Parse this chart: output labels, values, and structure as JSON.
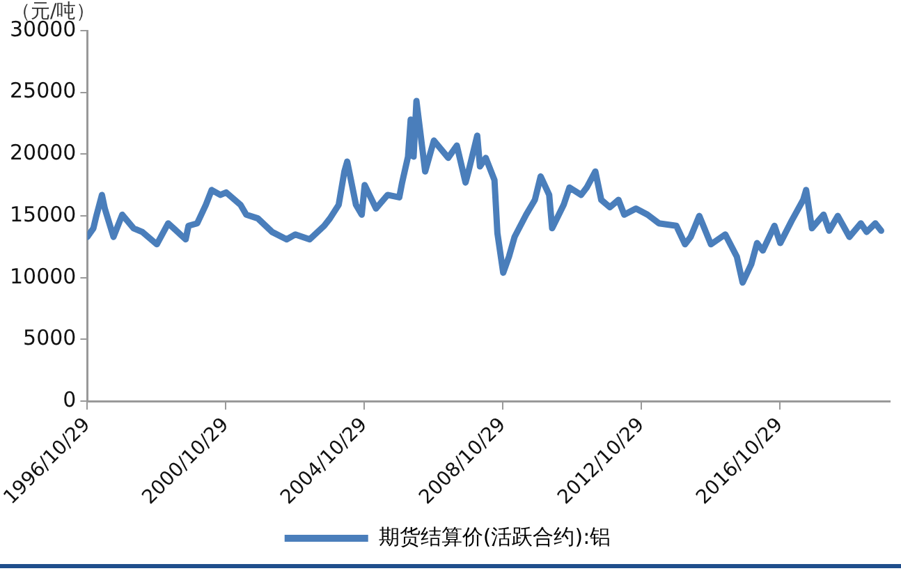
{
  "chart_data": {
    "type": "line",
    "ylabel": "（元/吨）",
    "x": [
      "1996-10-29",
      "1997-01",
      "1997-02",
      "1997-04",
      "1997-05",
      "1997-08",
      "1997-11",
      "1998-03",
      "1998-06",
      "1998-11",
      "1999-03",
      "1999-09",
      "1999-10",
      "2000-01",
      "2000-04",
      "2000-06",
      "2000-09",
      "2000-11",
      "2001-04",
      "2001-06",
      "2001-10",
      "2002-03",
      "2002-08",
      "2002-11",
      "2003-04",
      "2003-09",
      "2003-11",
      "2004-02",
      "2004-04",
      "2004-05",
      "2004-08",
      "2004-10",
      "2004-11",
      "2005-03",
      "2005-07",
      "2005-11",
      "2005-12",
      "2006-02",
      "2006-03",
      "2006-04",
      "2006-05",
      "2006-08",
      "2006-11",
      "2007-04",
      "2007-07",
      "2007-10",
      "2007-11",
      "2008-02",
      "2008-03",
      "2008-05",
      "2008-08",
      "2008-09",
      "2008-11",
      "2009-01",
      "2009-03",
      "2009-07",
      "2009-10",
      "2009-12",
      "2010-03",
      "2010-04",
      "2010-08",
      "2010-10",
      "2011-02",
      "2011-04",
      "2011-07",
      "2011-09",
      "2011-12",
      "2012-03",
      "2012-05",
      "2012-09",
      "2013-01",
      "2013-05",
      "2013-11",
      "2014-02",
      "2014-04",
      "2014-07",
      "2014-11",
      "2015-04",
      "2015-08",
      "2015-10",
      "2016-01",
      "2016-03",
      "2016-05",
      "2016-09",
      "2016-11",
      "2017-03",
      "2017-07",
      "2017-08",
      "2017-10",
      "2018-02",
      "2018-04",
      "2018-07",
      "2018-11",
      "2019-03",
      "2019-05",
      "2019-08",
      "2019-10"
    ],
    "series": [
      {
        "name": "期货结算价(活跃合约):铝",
        "color": "#4a7ebb",
        "values": [
          13300,
          14000,
          15000,
          16700,
          15600,
          13300,
          15100,
          14000,
          13700,
          12700,
          14400,
          13100,
          14200,
          14400,
          15900,
          17100,
          16700,
          16900,
          15900,
          15100,
          14800,
          13700,
          13100,
          13500,
          13100,
          14200,
          14800,
          15900,
          18600,
          19400,
          15900,
          15100,
          17500,
          15600,
          16700,
          16500,
          17700,
          19800,
          22800,
          19800,
          24300,
          18600,
          21100,
          19700,
          20700,
          17700,
          18600,
          21500,
          19000,
          19700,
          17900,
          13600,
          10400,
          11700,
          13300,
          15100,
          16300,
          18200,
          16700,
          14000,
          15900,
          17300,
          16700,
          17300,
          18600,
          16300,
          15700,
          16300,
          15100,
          15600,
          15100,
          14400,
          14200,
          12700,
          13300,
          15000,
          12700,
          13500,
          11700,
          9600,
          11100,
          12800,
          12200,
          14200,
          12800,
          14600,
          16300,
          17100,
          14000,
          15100,
          13800,
          15000,
          13300,
          14400,
          13700,
          14400,
          13800
        ]
      }
    ],
    "xlim": [
      "1996-10-29",
      "2020-01"
    ],
    "xticks": [
      {
        "value": "1996-10-29",
        "label": "1996/10/29"
      },
      {
        "value": "2000-10-29",
        "label": "2000/10/29"
      },
      {
        "value": "2004-10-29",
        "label": "2004/10/29"
      },
      {
        "value": "2008-10-29",
        "label": "2008/10/29"
      },
      {
        "value": "2012-10-29",
        "label": "2012/10/29"
      },
      {
        "value": "2016-10-29",
        "label": "2016/10/29"
      }
    ],
    "ylim": [
      0,
      30000
    ],
    "yticks": [
      0,
      5000,
      10000,
      15000,
      20000,
      25000,
      30000
    ],
    "grid": false,
    "legend": "bottom",
    "marker": "none",
    "line_style": "solid"
  }
}
